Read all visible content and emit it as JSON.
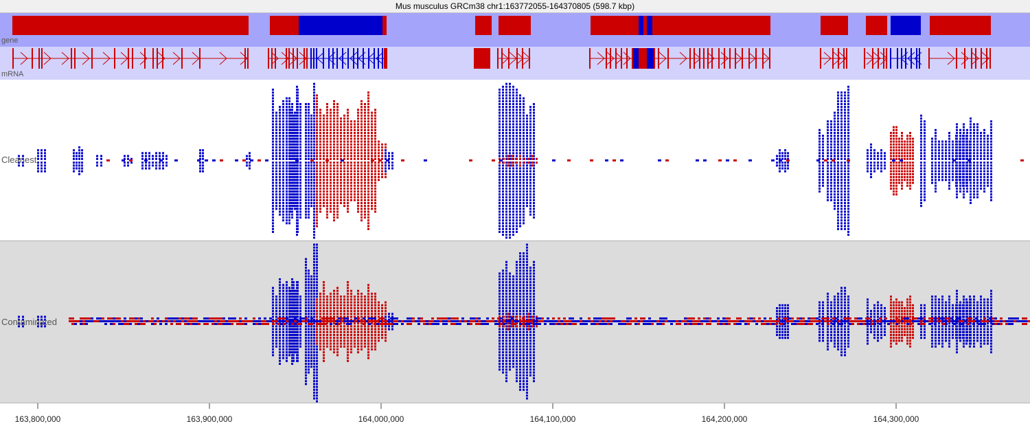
{
  "title": "Mus musculus GRCm38 chr1:163772055-164370805 (598.7 kbp)",
  "tracks": {
    "gene_label": "gene",
    "mrna_label": "mRNA",
    "cleanest_label": "Cleanest",
    "contaminated_label": "Contaminated"
  },
  "axis": {
    "ticks": [
      "163,800,000",
      "163,900,000",
      "164,000,000",
      "164,100,000",
      "164,200,000",
      "164,300,000"
    ]
  },
  "colors": {
    "forward": "#cc0000",
    "reverse": "#0000cc",
    "gene_bg": "#a4a4fa",
    "mrna_bg": "#d2d2fc",
    "contaminated_bg": "#dcdcdc"
  }
}
